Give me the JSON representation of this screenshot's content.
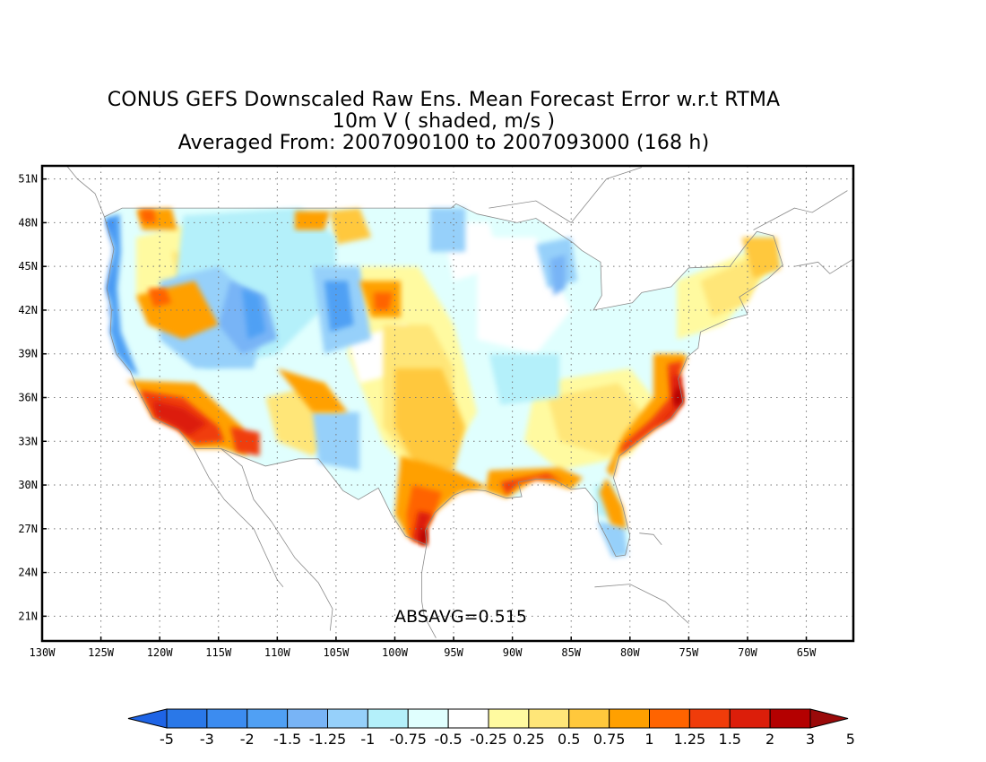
{
  "title": {
    "line1": "CONUS GEFS Downscaled Raw Ens. Mean Forecast Error w.r.t RTMA",
    "line2": "10m V ( shaded, m/s )",
    "line3": "Averaged From: 2007090100 to 2007093000 (168 h)"
  },
  "stat_label": "ABSAVG=0.515",
  "map": {
    "lon_range": [
      -130,
      -61
    ],
    "lat_range": [
      19.3,
      51.9
    ],
    "lat_ticks": [
      "51N",
      "48N",
      "45N",
      "42N",
      "39N",
      "36N",
      "33N",
      "30N",
      "27N",
      "24N",
      "21N"
    ],
    "lon_ticks": [
      "130W",
      "125W",
      "120W",
      "115W",
      "110W",
      "105W",
      "100W",
      "95W",
      "90W",
      "85W",
      "80W",
      "75W",
      "70W",
      "65W"
    ],
    "grid": "dotted"
  },
  "colorbar": {
    "labels": [
      "-5",
      "-3",
      "-2",
      "-1.5",
      "-1.25",
      "-1",
      "-0.75",
      "-0.5",
      "-0.25",
      "0.25",
      "0.5",
      "0.75",
      "1",
      "1.25",
      "1.5",
      "2",
      "3",
      "5"
    ],
    "colors": [
      "#1e64e6",
      "#2a78e8",
      "#3c8cf0",
      "#50a0f4",
      "#78b4f6",
      "#96d0fa",
      "#b4f0fa",
      "#e0fffe",
      "#ffffff",
      "#fffaa0",
      "#ffe678",
      "#ffc83c",
      "#ffa000",
      "#ff6400",
      "#f03c0a",
      "#dc1e0a",
      "#b40000",
      "#9a0a0a"
    ]
  },
  "regions": [
    {
      "name": "pacific-coast",
      "color": "#3c8cf0"
    },
    {
      "name": "southern-california",
      "color": "#dc1e0a"
    },
    {
      "name": "texas-gulf-coast",
      "color": "#dc1e0a"
    },
    {
      "name": "atlantic-coast",
      "color": "#f03c0a"
    }
  ]
}
